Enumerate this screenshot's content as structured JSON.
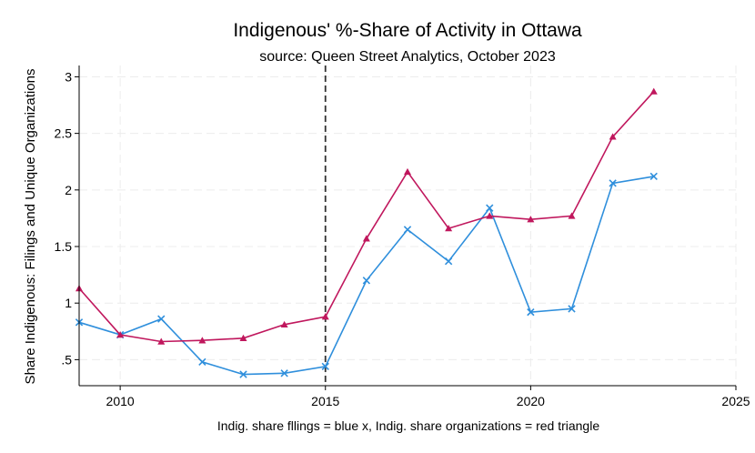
{
  "chart_data": {
    "type": "line",
    "title": "Indigenous' %-Share of Activity in Ottawa",
    "subtitle": "source: Queen Street Analytics, October 2023",
    "ylabel": "Share Indigenous: Filings and Unique Organizations",
    "note": "Indig. share fllings  = blue x, Indig. share organizations = red triangle",
    "xlim": [
      2009,
      2025
    ],
    "ylim": [
      0.27,
      3.1
    ],
    "x_ticks": [
      2010,
      2015,
      2020,
      2025
    ],
    "y_ticks": [
      0.5,
      1,
      1.5,
      2,
      2.5,
      3
    ],
    "y_tick_labels": [
      ".5",
      "1",
      "1.5",
      "2",
      "2.5",
      "3"
    ],
    "grid": true,
    "vline": {
      "x": 2015,
      "style": "dashed"
    },
    "x": [
      2009,
      2010,
      2011,
      2012,
      2013,
      2014,
      2015,
      2016,
      2017,
      2018,
      2019,
      2020,
      2021,
      2022,
      2023
    ],
    "series": [
      {
        "marker": "x",
        "color": "#2f8fdc",
        "values": [
          0.83,
          0.72,
          0.86,
          0.48,
          0.37,
          0.38,
          0.44,
          1.2,
          1.65,
          1.37,
          1.84,
          0.92,
          0.95,
          2.06,
          2.12
        ]
      },
      {
        "marker": "triangle",
        "color": "#c0175d",
        "values": [
          1.13,
          0.72,
          0.66,
          0.67,
          0.69,
          0.81,
          0.88,
          1.57,
          2.16,
          1.66,
          1.77,
          1.74,
          1.77,
          2.47,
          2.87
        ]
      }
    ]
  }
}
